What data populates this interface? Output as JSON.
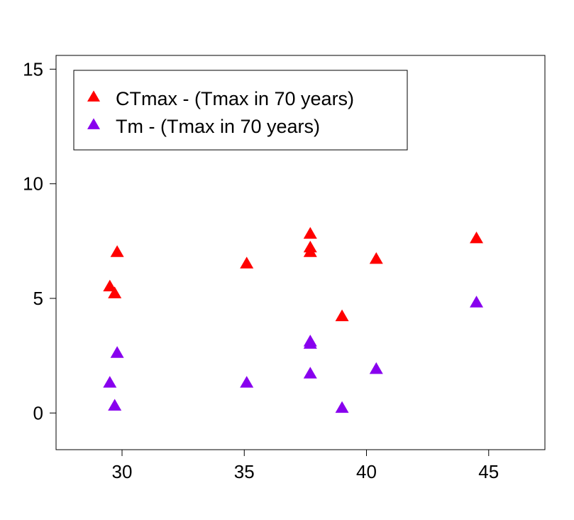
{
  "chart_data": {
    "type": "scatter",
    "title": "",
    "xlabel": "",
    "ylabel": "",
    "xlim": [
      27.3,
      47.3
    ],
    "ylim": [
      -1.6,
      15.6
    ],
    "x_ticks": [
      30,
      35,
      40,
      45
    ],
    "y_ticks": [
      0,
      5,
      10,
      15
    ],
    "grid": false,
    "legend_position": "top-left",
    "series": [
      {
        "name": "CTmax - (Tmax in 70 years)",
        "color": "#ff0000",
        "marker": "triangle-up",
        "x": [
          29.5,
          29.7,
          29.8,
          35.1,
          37.7,
          37.7,
          37.7,
          39.0,
          40.4,
          44.5
        ],
        "y": [
          5.5,
          5.2,
          7.0,
          6.5,
          7.8,
          7.2,
          7.0,
          4.2,
          6.7,
          7.6
        ]
      },
      {
        "name": "Tm - (Tmax in 70 years)",
        "color": "#8800ee",
        "marker": "triangle-up",
        "x": [
          29.5,
          29.7,
          29.8,
          35.1,
          37.7,
          37.7,
          37.7,
          39.0,
          40.4,
          44.5
        ],
        "y": [
          1.3,
          0.3,
          2.6,
          1.3,
          3.1,
          3.0,
          1.7,
          0.2,
          1.9,
          4.8
        ]
      }
    ]
  }
}
